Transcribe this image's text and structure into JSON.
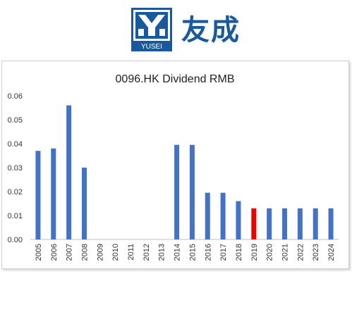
{
  "logo": {
    "brand_en": "YUSEI",
    "brand_cn": "友成",
    "icon": "yusei-logo-icon"
  },
  "chart_data": {
    "type": "bar",
    "title": "0096.HK Dividend RMB",
    "xlabel": "",
    "ylabel": "",
    "ylim": [
      0,
      0.06
    ],
    "yticks": [
      "0.00",
      "0.01",
      "0.02",
      "0.03",
      "0.04",
      "0.05",
      "0.06"
    ],
    "categories": [
      "2005",
      "2006",
      "2007",
      "2008",
      "2009",
      "2010",
      "2011",
      "2012",
      "2013",
      "2014",
      "2015",
      "2016",
      "2017",
      "2018",
      "2019",
      "2020",
      "2021",
      "2022",
      "2023",
      "2024"
    ],
    "values": [
      0.037,
      0.038,
      0.056,
      0.03,
      0,
      0,
      0,
      0,
      0,
      0.0395,
      0.0395,
      0.0195,
      0.0195,
      0.016,
      0.013,
      0.013,
      0.013,
      0.013,
      0.013,
      0.013
    ],
    "highlight_category": "2019",
    "bar_color": "#4472c4",
    "highlight_color": "#ee0000",
    "grid": false,
    "legend": "none"
  }
}
